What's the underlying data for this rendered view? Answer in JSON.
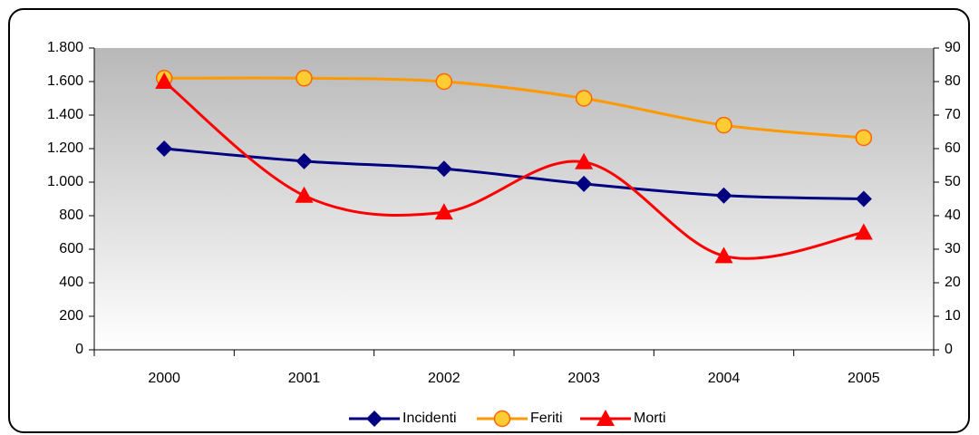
{
  "chart_data": {
    "type": "line",
    "categories": [
      "2000",
      "2001",
      "2002",
      "2003",
      "2004",
      "2005"
    ],
    "series": [
      {
        "name": "Incidenti",
        "color": "#000080",
        "marker": "diamond",
        "values": [
          1200,
          1125,
          1080,
          990,
          920,
          900
        ]
      },
      {
        "name": "Feriti",
        "color": "#FF9900",
        "marker": "circle",
        "values": [
          1620,
          1620,
          1600,
          1500,
          1340,
          1265
        ]
      },
      {
        "name": "Morti",
        "color": "#FF0000",
        "marker": "triangle",
        "axis": "y2",
        "values": [
          80,
          46,
          41,
          56,
          28,
          35
        ]
      }
    ],
    "ylim": [
      0,
      1800
    ],
    "yticks": [
      0,
      200,
      400,
      600,
      800,
      {
        "value": 1000,
        "label": "1.000"
      },
      {
        "value": 1200,
        "label": "1.200"
      },
      {
        "value": 1400,
        "label": "1.400"
      },
      {
        "value": 1600,
        "label": "1.600"
      },
      {
        "value": 1800,
        "label": "1.800"
      }
    ],
    "y2lim": [
      0,
      90
    ],
    "y2ticks": [
      0,
      10,
      20,
      30,
      40,
      50,
      60,
      70,
      80,
      90
    ],
    "smooth": true,
    "legend": "bottom"
  }
}
